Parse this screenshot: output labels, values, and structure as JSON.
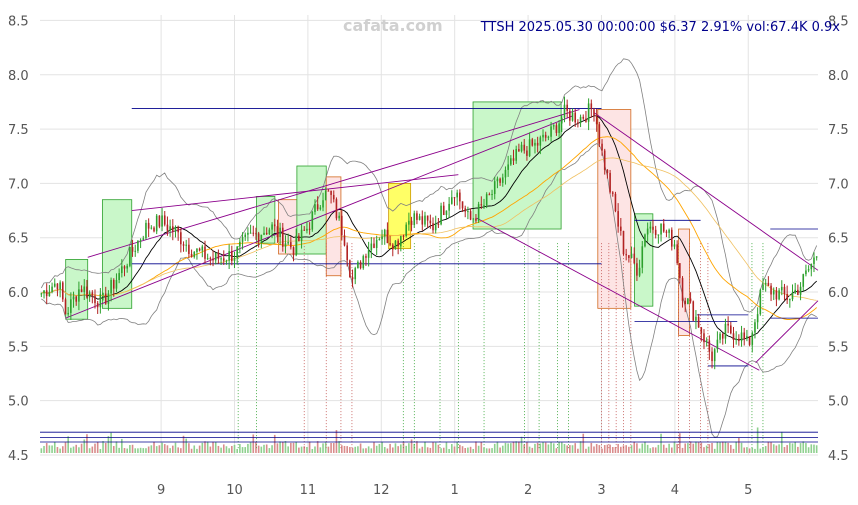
{
  "watermark": "cafata.com",
  "info_line": "TTSH 2025.05.30 00:00:00 $6.37 2.91% vol:67.4K 0.9x",
  "colors": {
    "up": "#2ca02c",
    "down": "#b22222",
    "bull_box": "#c9f7c9",
    "bear_box": "#fde4e4",
    "neutral_box": "#ffff66",
    "trend": "#8b008b",
    "level": "#00008b",
    "ma_short": "#000000",
    "ma_long": "#ffa500",
    "band": "#808080"
  },
  "chart_data": {
    "type": "candlestick",
    "ylim": [
      4.5,
      8.55
    ],
    "y_ticks": [
      "4.5",
      "5.0",
      "5.5",
      "6.0",
      "6.5",
      "7.0",
      "7.5",
      "8.0",
      "8.5"
    ],
    "x_ticks": [
      {
        "label": "9",
        "t": 1.0
      },
      {
        "label": "10",
        "t": 2.0
      },
      {
        "label": "11",
        "t": 3.0
      },
      {
        "label": "12",
        "t": 4.0
      },
      {
        "label": "1",
        "t": 5.0
      },
      {
        "label": "2",
        "t": 6.0
      },
      {
        "label": "3",
        "t": 7.0
      },
      {
        "label": "4",
        "t": 8.0
      },
      {
        "label": "5",
        "t": 9.0
      }
    ],
    "x_range": [
      -0.65,
      9.95
    ],
    "anchors": [
      [
        -0.65,
        5.98
      ],
      [
        -0.4,
        6.1
      ],
      [
        -0.3,
        5.8
      ],
      [
        -0.1,
        6.05
      ],
      [
        0.2,
        5.9
      ],
      [
        0.5,
        6.25
      ],
      [
        0.8,
        6.6
      ],
      [
        1.0,
        6.65
      ],
      [
        1.2,
        6.55
      ],
      [
        1.4,
        6.4
      ],
      [
        1.7,
        6.3
      ],
      [
        2.0,
        6.35
      ],
      [
        2.2,
        6.5
      ],
      [
        2.5,
        6.6
      ],
      [
        2.8,
        6.4
      ],
      [
        3.0,
        6.6
      ],
      [
        3.2,
        6.9
      ],
      [
        3.3,
        6.9
      ],
      [
        3.5,
        6.5
      ],
      [
        3.6,
        6.1
      ],
      [
        3.8,
        6.4
      ],
      [
        4.0,
        6.55
      ],
      [
        4.2,
        6.45
      ],
      [
        4.4,
        6.7
      ],
      [
        4.7,
        6.6
      ],
      [
        5.0,
        6.95
      ],
      [
        5.2,
        6.65
      ],
      [
        5.4,
        6.8
      ],
      [
        5.6,
        7.0
      ],
      [
        5.9,
        7.3
      ],
      [
        6.1,
        7.35
      ],
      [
        6.3,
        7.45
      ],
      [
        6.5,
        7.65
      ],
      [
        6.7,
        7.6
      ],
      [
        6.9,
        7.7
      ],
      [
        7.0,
        7.3
      ],
      [
        7.1,
        7.0
      ],
      [
        7.3,
        6.4
      ],
      [
        7.5,
        6.2
      ],
      [
        7.6,
        6.6
      ],
      [
        7.8,
        6.6
      ],
      [
        8.0,
        6.45
      ],
      [
        8.1,
        6.0
      ],
      [
        8.3,
        5.75
      ],
      [
        8.5,
        5.4
      ],
      [
        8.7,
        5.65
      ],
      [
        8.9,
        5.6
      ],
      [
        9.0,
        5.5
      ],
      [
        9.2,
        6.05
      ],
      [
        9.35,
        6.0
      ],
      [
        9.55,
        5.95
      ],
      [
        9.7,
        6.05
      ],
      [
        9.95,
        6.37
      ]
    ],
    "boxes": [
      {
        "t0": -0.3,
        "t1": 0.0,
        "y0": 5.75,
        "y1": 6.3,
        "kind": "bull"
      },
      {
        "t0": 0.2,
        "t1": 0.6,
        "y0": 5.85,
        "y1": 6.85,
        "kind": "bull"
      },
      {
        "t0": 2.3,
        "t1": 2.55,
        "y0": 6.45,
        "y1": 6.88,
        "kind": "bull"
      },
      {
        "t0": 2.6,
        "t1": 2.85,
        "y0": 6.35,
        "y1": 6.85,
        "kind": "bear"
      },
      {
        "t0": 2.85,
        "t1": 3.25,
        "y0": 6.35,
        "y1": 7.16,
        "kind": "bull"
      },
      {
        "t0": 3.25,
        "t1": 3.45,
        "y0": 6.15,
        "y1": 7.06,
        "kind": "bear"
      },
      {
        "t0": 4.1,
        "t1": 4.4,
        "y0": 6.4,
        "y1": 7.0,
        "kind": "neutral"
      },
      {
        "t0": 5.25,
        "t1": 6.45,
        "y0": 6.58,
        "y1": 7.75,
        "kind": "bull"
      },
      {
        "t0": 6.95,
        "t1": 7.4,
        "y0": 5.85,
        "y1": 7.68,
        "kind": "bear"
      },
      {
        "t0": 7.45,
        "t1": 7.7,
        "y0": 5.87,
        "y1": 6.72,
        "kind": "bull"
      },
      {
        "t0": 8.05,
        "t1": 8.2,
        "y0": 5.6,
        "y1": 6.58,
        "kind": "bear"
      }
    ],
    "levels": [
      {
        "t0": 0.6,
        "t1": 7.0,
        "y": 7.69
      },
      {
        "t0": 0.6,
        "t1": 7.0,
        "y": 6.26
      },
      {
        "t0": 7.45,
        "t1": 8.35,
        "y": 6.66
      },
      {
        "t0": 7.45,
        "t1": 8.85,
        "y": 5.73
      },
      {
        "t0": 8.3,
        "t1": 9.0,
        "y": 5.79
      },
      {
        "t0": 8.45,
        "t1": 9.0,
        "y": 5.32
      },
      {
        "t0": 9.3,
        "t1": 9.95,
        "y": 6.58
      },
      {
        "t0": 9.3,
        "t1": 9.95,
        "y": 5.76
      },
      {
        "t0": -0.65,
        "t1": 9.95,
        "y": 4.71
      },
      {
        "t0": -0.65,
        "t1": 9.95,
        "y": 4.66
      },
      {
        "t0": -0.65,
        "t1": 9.95,
        "y": 4.62
      }
    ],
    "trendlines": [
      {
        "t0": 0.0,
        "y0": 6.32,
        "t1": 6.7,
        "y1": 7.68
      },
      {
        "t0": -0.3,
        "y0": 5.76,
        "t1": 6.6,
        "y1": 7.62
      },
      {
        "t0": 0.6,
        "y0": 6.75,
        "t1": 5.05,
        "y1": 7.08
      },
      {
        "t0": 6.9,
        "y0": 7.65,
        "t1": 9.95,
        "y1": 6.2
      },
      {
        "t0": 5.3,
        "y0": 6.68,
        "t1": 9.15,
        "y1": 5.28
      },
      {
        "t0": 9.1,
        "y0": 5.35,
        "t1": 9.95,
        "y1": 5.92
      }
    ],
    "markers": [
      2.05,
      2.3,
      2.95,
      3.25,
      3.45,
      3.6,
      4.3,
      4.45,
      4.8,
      5.05,
      5.4,
      5.95,
      6.15,
      6.4,
      6.55,
      7.0,
      7.1,
      7.2,
      7.3,
      7.4,
      8.05,
      8.2,
      8.35,
      8.45,
      9.05,
      9.2
    ],
    "vol_ylim": [
      0,
      1
    ],
    "n_candles": 290
  }
}
